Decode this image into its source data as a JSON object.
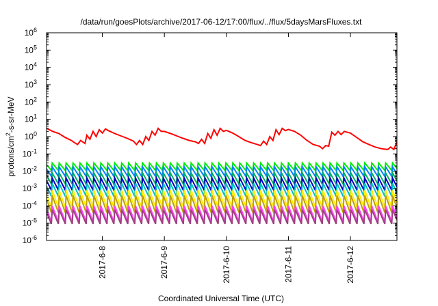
{
  "chart_data": {
    "type": "line",
    "title": "/data/run/goesPlots/archive/2017-06-12/17:00/flux/../flux/5daysMarsFluxes.txt",
    "xlabel": "Coordinated Universal Time (UTC)",
    "ylabel": "protons/cm²-s-sr-MeV",
    "yscale": "log",
    "ylim_exp": [
      -6,
      6
    ],
    "y_tick_exponents": [
      -6,
      -5,
      -4,
      -3,
      -2,
      -1,
      0,
      1,
      2,
      3,
      4,
      5,
      6
    ],
    "xlim_days": [
      7.1,
      12.75
    ],
    "x_ticks": [
      {
        "day": 8,
        "label": "2017-6-8"
      },
      {
        "day": 9,
        "label": "2017-6-9"
      },
      {
        "day": 10,
        "label": "2017-6-10"
      },
      {
        "day": 11,
        "label": "2017-6-11"
      },
      {
        "day": 12,
        "label": "2017-6-12"
      }
    ],
    "grid": false,
    "legend": "none",
    "red_series": {
      "color": "#ff0000",
      "day": [
        7.1,
        7.2,
        7.3,
        7.4,
        7.5,
        7.55,
        7.6,
        7.65,
        7.72,
        7.75,
        7.8,
        7.85,
        7.9,
        7.95,
        8.0,
        8.05,
        8.1,
        8.2,
        8.3,
        8.4,
        8.5,
        8.55,
        8.6,
        8.65,
        8.7,
        8.75,
        8.8,
        8.85,
        8.9,
        8.95,
        9.0,
        9.1,
        9.2,
        9.3,
        9.4,
        9.5,
        9.55,
        9.6,
        9.65,
        9.7,
        9.75,
        9.8,
        9.85,
        9.9,
        9.95,
        10.0,
        10.1,
        10.2,
        10.3,
        10.4,
        10.5,
        10.55,
        10.6,
        10.65,
        10.7,
        10.75,
        10.8,
        10.85,
        10.9,
        10.95,
        11.0,
        11.1,
        11.2,
        11.3,
        11.4,
        11.5,
        11.55,
        11.6,
        11.65,
        11.7,
        11.75,
        11.8,
        11.85,
        11.9,
        12.0,
        12.1,
        12.2,
        12.3,
        12.4,
        12.5,
        12.6,
        12.65,
        12.7,
        12.75
      ],
      "y": [
        3.0,
        2.0,
        1.5,
        0.9,
        0.6,
        0.45,
        0.35,
        0.6,
        0.4,
        1.2,
        0.7,
        2.0,
        1.0,
        2.5,
        1.6,
        2.8,
        2.2,
        1.5,
        1.1,
        0.8,
        0.55,
        0.35,
        0.6,
        0.35,
        1.0,
        0.6,
        2.0,
        1.2,
        3.0,
        2.0,
        2.0,
        1.5,
        1.1,
        0.8,
        0.6,
        0.5,
        0.4,
        0.7,
        0.4,
        1.5,
        0.8,
        2.5,
        1.2,
        3.0,
        2.0,
        2.3,
        1.6,
        1.0,
        0.6,
        0.45,
        0.35,
        0.3,
        0.55,
        0.35,
        1.0,
        0.6,
        2.5,
        1.3,
        3.0,
        2.2,
        2.6,
        2.0,
        1.2,
        0.6,
        0.35,
        0.28,
        0.2,
        0.3,
        0.28,
        1.8,
        1.2,
        2.0,
        1.3,
        2.0,
        1.6,
        0.9,
        0.5,
        0.35,
        0.25,
        0.2,
        0.18,
        0.25,
        0.18,
        0.5
      ]
    },
    "saw_series": [
      {
        "color": "#00ee00",
        "peak": 0.03,
        "trough": 0.011
      },
      {
        "color": "#0080ff",
        "peak": 0.018,
        "trough": 0.005
      },
      {
        "color": "#00b060",
        "peak": 0.008,
        "trough": 0.0018
      },
      {
        "color": "#0000c0",
        "peak": 0.004,
        "trough": 0.0008
      },
      {
        "color": "#00c0c0",
        "peak": 0.002,
        "trough": 0.00035
      },
      {
        "color": "#ffee00",
        "peak": 0.0008,
        "trough": 8e-05
      },
      {
        "color": "#c0a000",
        "peak": 0.0004,
        "trough": 4e-05
      },
      {
        "color": "#ff40ff",
        "peak": 0.0001,
        "trough": 1.2e-05
      },
      {
        "color": "#a04080",
        "peak": 6e-05,
        "trough": 9e-06
      }
    ],
    "saw_period_days": 0.112
  }
}
